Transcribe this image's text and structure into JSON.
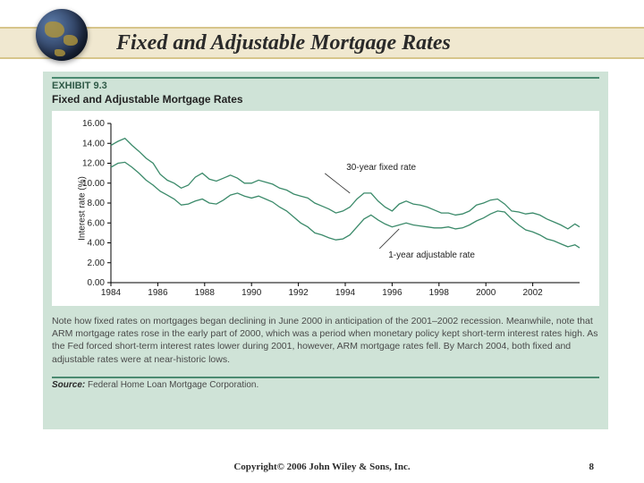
{
  "slide": {
    "title": "Fixed and Adjustable Mortgage Rates",
    "copyright": "Copyright© 2006 John Wiley & Sons, Inc.",
    "page_number": "8"
  },
  "exhibit": {
    "label": "EXHIBIT 9.3",
    "title": "Fixed and Adjustable Mortgage Rates",
    "note": "Note how fixed rates on mortgages began declining in June 2000 in anticipation of the 2001–2002 recession. Meanwhile, note that ARM mortgage rates rose in the early part of 2000, which was a period when monetary policy kept short-term interest rates high. As the Fed forced short-term interest rates lower during 2001, however, ARM mortgage rates fell. By March 2004, both fixed and adjustable rates were at near-historic lows.",
    "source_label": "Source:",
    "source_text": "Federal Home Loan Mortgage Corporation."
  },
  "chart": {
    "type": "line",
    "background_color": "#ffffff",
    "panel_color": "#cfe3d7",
    "axis_color": "#000000",
    "series_color": "#3b8a6a",
    "y_label": "Interest rate (%)",
    "x_range": [
      1984,
      2004
    ],
    "y_range": [
      0,
      16
    ],
    "y_ticks": [
      0.0,
      2.0,
      4.0,
      6.0,
      8.0,
      10.0,
      12.0,
      14.0,
      16.0
    ],
    "y_tick_labels": [
      "0.00",
      "2.00",
      "4.00",
      "6.00",
      "8.00",
      "10.00",
      "12.00",
      "14.00",
      "16.00"
    ],
    "x_ticks": [
      1984,
      1986,
      1988,
      1990,
      1992,
      1994,
      1996,
      1998,
      2000,
      2002
    ],
    "x_tick_labels": [
      "1984",
      "1986",
      "1988",
      "1990",
      "1992",
      "1994",
      "1996",
      "1998",
      "2000",
      "2002"
    ],
    "annotations": {
      "fixed": "30-year fixed rate",
      "adjustable": "1-year adjustable rate"
    },
    "series": {
      "fixed_30yr": [
        [
          1984.0,
          13.8
        ],
        [
          1984.3,
          14.2
        ],
        [
          1984.6,
          14.5
        ],
        [
          1984.9,
          13.8
        ],
        [
          1985.2,
          13.2
        ],
        [
          1985.5,
          12.5
        ],
        [
          1985.8,
          12.0
        ],
        [
          1986.1,
          10.9
        ],
        [
          1986.4,
          10.3
        ],
        [
          1986.7,
          10.0
        ],
        [
          1987.0,
          9.5
        ],
        [
          1987.3,
          9.8
        ],
        [
          1987.6,
          10.6
        ],
        [
          1987.9,
          11.0
        ],
        [
          1988.2,
          10.4
        ],
        [
          1988.5,
          10.2
        ],
        [
          1988.8,
          10.5
        ],
        [
          1989.1,
          10.8
        ],
        [
          1989.4,
          10.5
        ],
        [
          1989.7,
          10.0
        ],
        [
          1990.0,
          10.0
        ],
        [
          1990.3,
          10.3
        ],
        [
          1990.6,
          10.1
        ],
        [
          1990.9,
          9.9
        ],
        [
          1991.2,
          9.5
        ],
        [
          1991.5,
          9.3
        ],
        [
          1991.8,
          8.9
        ],
        [
          1992.1,
          8.7
        ],
        [
          1992.4,
          8.5
        ],
        [
          1992.7,
          8.0
        ],
        [
          1993.0,
          7.7
        ],
        [
          1993.3,
          7.4
        ],
        [
          1993.6,
          7.0
        ],
        [
          1993.9,
          7.2
        ],
        [
          1994.2,
          7.6
        ],
        [
          1994.5,
          8.4
        ],
        [
          1994.8,
          9.0
        ],
        [
          1995.1,
          9.0
        ],
        [
          1995.4,
          8.2
        ],
        [
          1995.7,
          7.6
        ],
        [
          1996.0,
          7.2
        ],
        [
          1996.3,
          7.9
        ],
        [
          1996.6,
          8.2
        ],
        [
          1996.9,
          7.9
        ],
        [
          1997.2,
          7.8
        ],
        [
          1997.5,
          7.6
        ],
        [
          1997.8,
          7.3
        ],
        [
          1998.1,
          7.0
        ],
        [
          1998.4,
          7.0
        ],
        [
          1998.7,
          6.8
        ],
        [
          1999.0,
          6.9
        ],
        [
          1999.3,
          7.2
        ],
        [
          1999.6,
          7.8
        ],
        [
          1999.9,
          8.0
        ],
        [
          2000.2,
          8.3
        ],
        [
          2000.5,
          8.4
        ],
        [
          2000.8,
          7.9
        ],
        [
          2001.1,
          7.2
        ],
        [
          2001.4,
          7.1
        ],
        [
          2001.7,
          6.9
        ],
        [
          2002.0,
          7.0
        ],
        [
          2002.3,
          6.8
        ],
        [
          2002.6,
          6.4
        ],
        [
          2002.9,
          6.1
        ],
        [
          2003.2,
          5.8
        ],
        [
          2003.5,
          5.4
        ],
        [
          2003.8,
          5.9
        ],
        [
          2004.0,
          5.6
        ]
      ],
      "adjustable_1yr": [
        [
          1984.0,
          11.6
        ],
        [
          1984.3,
          12.0
        ],
        [
          1984.6,
          12.1
        ],
        [
          1984.9,
          11.6
        ],
        [
          1985.2,
          11.0
        ],
        [
          1985.5,
          10.3
        ],
        [
          1985.8,
          9.8
        ],
        [
          1986.1,
          9.2
        ],
        [
          1986.4,
          8.8
        ],
        [
          1986.7,
          8.4
        ],
        [
          1987.0,
          7.8
        ],
        [
          1987.3,
          7.9
        ],
        [
          1987.6,
          8.2
        ],
        [
          1987.9,
          8.4
        ],
        [
          1988.2,
          8.0
        ],
        [
          1988.5,
          7.9
        ],
        [
          1988.8,
          8.3
        ],
        [
          1989.1,
          8.8
        ],
        [
          1989.4,
          9.0
        ],
        [
          1989.7,
          8.7
        ],
        [
          1990.0,
          8.5
        ],
        [
          1990.3,
          8.7
        ],
        [
          1990.6,
          8.4
        ],
        [
          1990.9,
          8.1
        ],
        [
          1991.2,
          7.6
        ],
        [
          1991.5,
          7.2
        ],
        [
          1991.8,
          6.6
        ],
        [
          1992.1,
          6.0
        ],
        [
          1992.4,
          5.6
        ],
        [
          1992.7,
          5.0
        ],
        [
          1993.0,
          4.8
        ],
        [
          1993.3,
          4.5
        ],
        [
          1993.6,
          4.3
        ],
        [
          1993.9,
          4.4
        ],
        [
          1994.2,
          4.8
        ],
        [
          1994.5,
          5.6
        ],
        [
          1994.8,
          6.4
        ],
        [
          1995.1,
          6.8
        ],
        [
          1995.4,
          6.3
        ],
        [
          1995.7,
          5.9
        ],
        [
          1996.0,
          5.6
        ],
        [
          1996.3,
          5.8
        ],
        [
          1996.6,
          6.0
        ],
        [
          1996.9,
          5.8
        ],
        [
          1997.2,
          5.7
        ],
        [
          1997.5,
          5.6
        ],
        [
          1997.8,
          5.5
        ],
        [
          1998.1,
          5.5
        ],
        [
          1998.4,
          5.6
        ],
        [
          1998.7,
          5.4
        ],
        [
          1999.0,
          5.5
        ],
        [
          1999.3,
          5.8
        ],
        [
          1999.6,
          6.2
        ],
        [
          1999.9,
          6.5
        ],
        [
          2000.2,
          6.9
        ],
        [
          2000.5,
          7.2
        ],
        [
          2000.8,
          7.1
        ],
        [
          2001.1,
          6.4
        ],
        [
          2001.4,
          5.8
        ],
        [
          2001.7,
          5.3
        ],
        [
          2002.0,
          5.1
        ],
        [
          2002.3,
          4.8
        ],
        [
          2002.6,
          4.4
        ],
        [
          2002.9,
          4.2
        ],
        [
          2003.2,
          3.9
        ],
        [
          2003.5,
          3.6
        ],
        [
          2003.8,
          3.8
        ],
        [
          2004.0,
          3.5
        ]
      ]
    },
    "label_fontsize": 10,
    "line_width": 1.3
  }
}
